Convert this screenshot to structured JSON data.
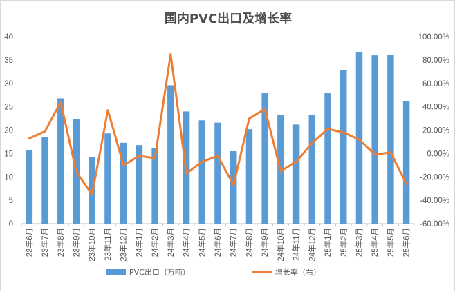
{
  "chart_data": {
    "type": "bar",
    "title": "国内PVC出口及增长率",
    "categories": [
      "23年6月",
      "23年7月",
      "23年8月",
      "23年9月",
      "23年10月",
      "23年11月",
      "23年12月",
      "24年1月",
      "24年2月",
      "24年3月",
      "24年4月",
      "24年5月",
      "24年6月",
      "24年7月",
      "24年8月",
      "24年9月",
      "24年10月",
      "24年11月",
      "24年12月",
      "25年1月",
      "25年2月",
      "25年3月",
      "25年4月",
      "25年5月",
      "25年6月"
    ],
    "series": [
      {
        "name": "PVC出口（万吨）",
        "type": "bar",
        "axis": "left",
        "color": "#5b9bd5",
        "values": [
          15.8,
          18.6,
          26.8,
          22.4,
          14.2,
          19.3,
          17.3,
          16.8,
          16.1,
          29.6,
          24.0,
          22.1,
          21.6,
          15.5,
          20.2,
          27.9,
          23.3,
          21.2,
          23.2,
          28.0,
          32.8,
          36.6,
          36.0,
          36.1,
          26.2
        ]
      },
      {
        "name": "增长率（右）",
        "type": "line",
        "axis": "right",
        "color": "#ed7d31",
        "values": [
          13,
          19,
          44,
          -16,
          -35,
          37,
          -10,
          -2,
          -4,
          85,
          -17,
          -7,
          -2,
          -27,
          30,
          38,
          -15,
          -7,
          9,
          21,
          18,
          12,
          -1,
          1,
          -26
        ]
      }
    ],
    "y_left": {
      "ylim": [
        0,
        40
      ],
      "ticks": [
        "0",
        "5",
        "10",
        "15",
        "20",
        "25",
        "30",
        "35",
        "40"
      ]
    },
    "y_right": {
      "ylim": [
        -60,
        100
      ],
      "unit": "%",
      "ticks": [
        "-60.00%",
        "-40.00%",
        "-20.00%",
        "0.00%",
        "20.00%",
        "40.00%",
        "60.00%",
        "80.00%",
        "100.00%"
      ]
    },
    "grid": false,
    "legend_position": "bottom"
  }
}
